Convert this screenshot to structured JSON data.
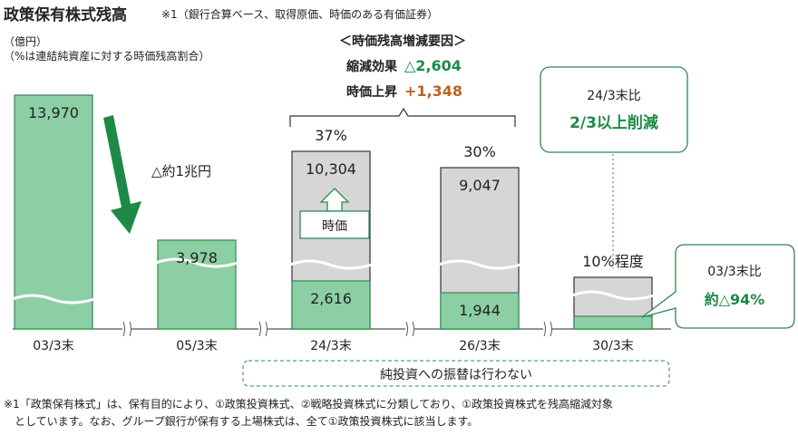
{
  "title": "政策保有株式残高",
  "title_note": "※1（銀行合算ベース、取得原価、時価のある有価証券）",
  "unit": "（億円）",
  "unit_note": "（%は連結純資産に対する時価残高割合）",
  "factors": {
    "header": "＜時価残高増減要因＞",
    "reduction_label": "縮減効果",
    "reduction_value": "△2,604",
    "rise_label": "時価上昇",
    "rise_value": "+1,348"
  },
  "arrow_label": "△約1兆円",
  "market_label": "時価",
  "callout_2024": {
    "line1": "24/3末比",
    "line2": "2/3以上削減"
  },
  "callout_2003": {
    "line1": "03/3末比",
    "line2": "約△94%"
  },
  "bottom_note": "純投資への振替は行わない",
  "footnote": {
    "line1": "※1「政策保有株式」は、保有目的により、①政策投資株式、②戦略投資株式に分類しており、①政策投資株式を残高縮減対象",
    "line2": "　としています。なお、グループ銀行が保有する上場株式は、全て①政策投資株式に該当します。"
  },
  "colors": {
    "green": "#8ccfa5",
    "green_border": "#2e8a4e",
    "gray": "#d6d6d6",
    "arrow": "#1d8a45",
    "orange": "#c0621c",
    "text_green": "#1d8a45"
  },
  "chart_data": {
    "type": "bar",
    "categories": [
      "03/3末",
      "05/3末",
      "24/3末",
      "26/3末",
      "30/3末"
    ],
    "series": [
      {
        "values": [
          13970,
          3978,
          2616,
          1944,
          null
        ]
      },
      {
        "values": [
          null,
          null,
          10304,
          9047,
          null
        ]
      }
    ],
    "value_labels": [
      "13,970",
      "3,978",
      "10,304",
      "9,047",
      null
    ],
    "cost_labels": [
      null,
      null,
      "2,616",
      "1,944",
      null
    ],
    "percent_labels": [
      null,
      null,
      "37%",
      "30%",
      "10%程度"
    ],
    "axis_break": true
  }
}
